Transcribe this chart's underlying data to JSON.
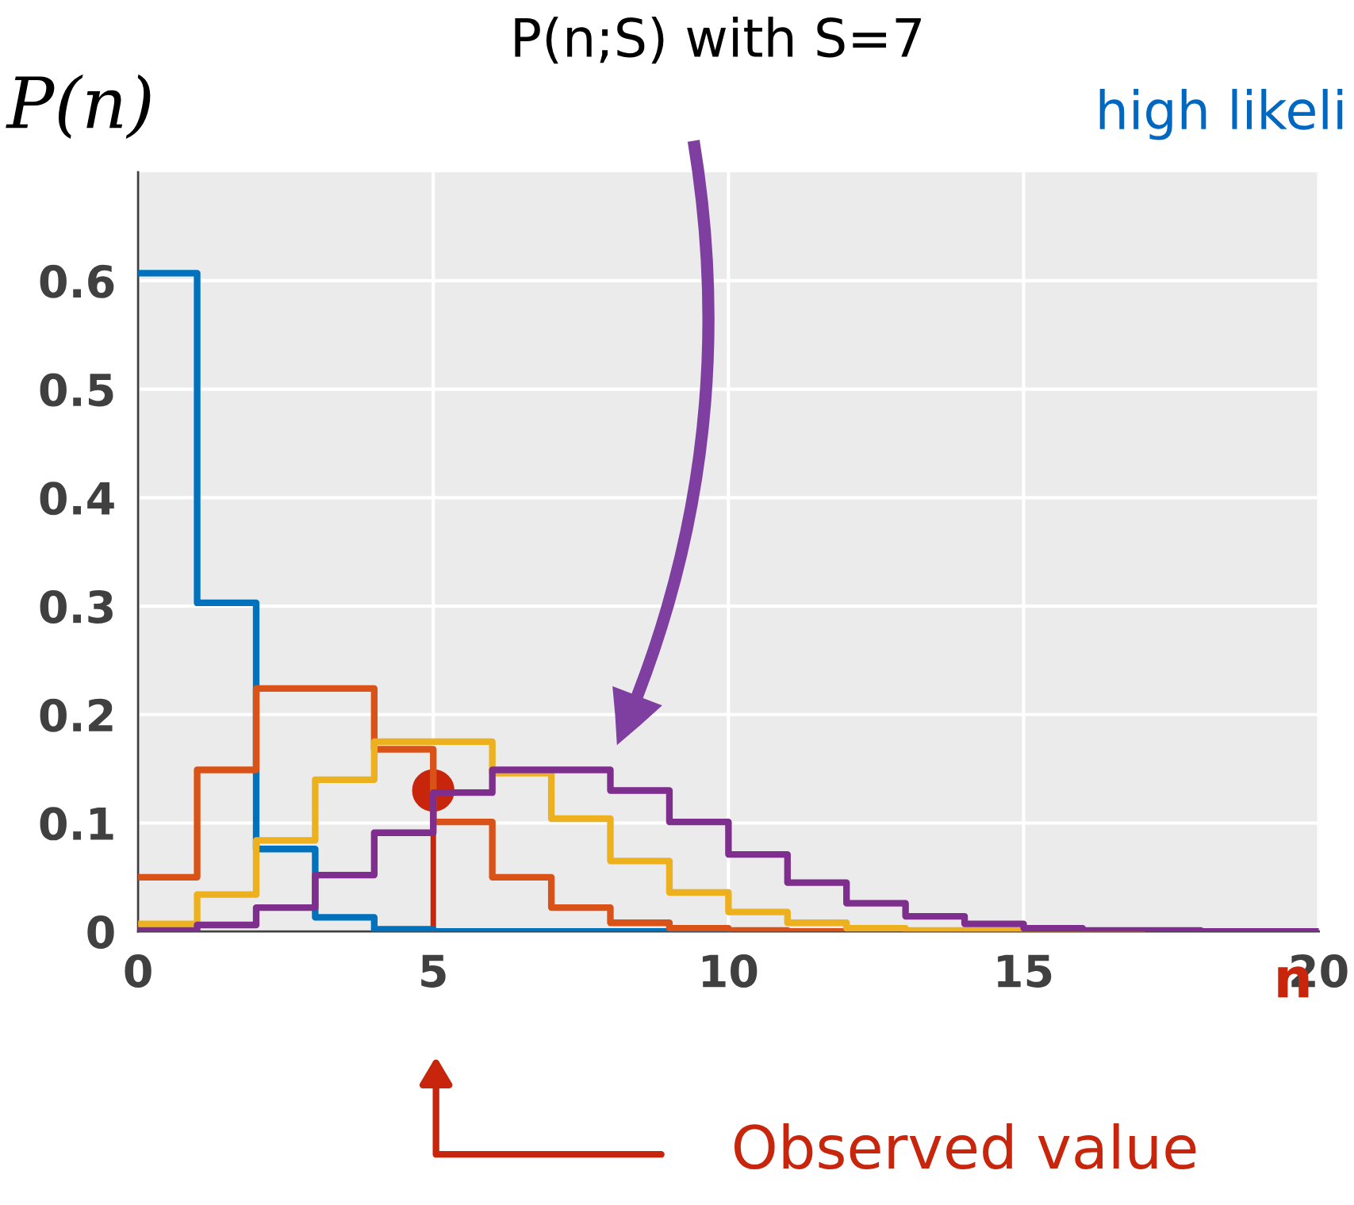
{
  "chart_data": {
    "type": "step",
    "title": "P(n;S) with S=7",
    "ylabel": "P(n)",
    "xlabel": "n",
    "annotations": [
      "high likeli",
      "Observed value"
    ],
    "xlim": [
      0,
      20
    ],
    "xticks": [
      0,
      5,
      10,
      15,
      20
    ],
    "ylim": [
      0,
      0.7
    ],
    "yticks": [
      0,
      0.1,
      0.2,
      0.3,
      0.4,
      0.5,
      0.6
    ],
    "grid": true,
    "legend": false,
    "series": [
      {
        "color": "#0072bd",
        "x": [
          0,
          1,
          2,
          3,
          4,
          5,
          6,
          7,
          8,
          9,
          10
        ],
        "values": [
          0.607,
          0.303,
          0.076,
          0.013,
          0.002,
          0,
          0,
          0,
          0,
          0,
          0
        ]
      },
      {
        "color": "#d95319",
        "x": [
          0,
          1,
          2,
          3,
          4,
          5,
          6,
          7,
          8,
          9,
          10,
          11,
          12,
          13,
          14,
          15,
          16,
          17
        ],
        "values": [
          0.05,
          0.149,
          0.224,
          0.224,
          0.168,
          0.101,
          0.05,
          0.022,
          0.008,
          0.003,
          0.001,
          0,
          0,
          0,
          0,
          0,
          0,
          0
        ]
      },
      {
        "color": "#edb120",
        "x": [
          0,
          1,
          2,
          3,
          4,
          5,
          6,
          7,
          8,
          9,
          10,
          11,
          12,
          13,
          14,
          15,
          16,
          17
        ],
        "values": [
          0.007,
          0.034,
          0.084,
          0.14,
          0.175,
          0.175,
          0.146,
          0.104,
          0.065,
          0.036,
          0.018,
          0.008,
          0.003,
          0.001,
          0.001,
          0,
          0,
          0
        ]
      },
      {
        "color": "#7e2f8e",
        "x": [
          0,
          1,
          2,
          3,
          4,
          5,
          6,
          7,
          8,
          9,
          10,
          11,
          12,
          13,
          14,
          15,
          16,
          17,
          18,
          19,
          20
        ],
        "values": [
          0.001,
          0.006,
          0.022,
          0.052,
          0.091,
          0.128,
          0.149,
          0.149,
          0.13,
          0.101,
          0.071,
          0.045,
          0.026,
          0.014,
          0.007,
          0.003,
          0.001,
          0.001,
          0,
          0,
          0
        ]
      },
      {
        "type": "lollipop",
        "color": "#c8260c",
        "x": [
          5
        ],
        "values": [
          0.13
        ]
      }
    ]
  }
}
